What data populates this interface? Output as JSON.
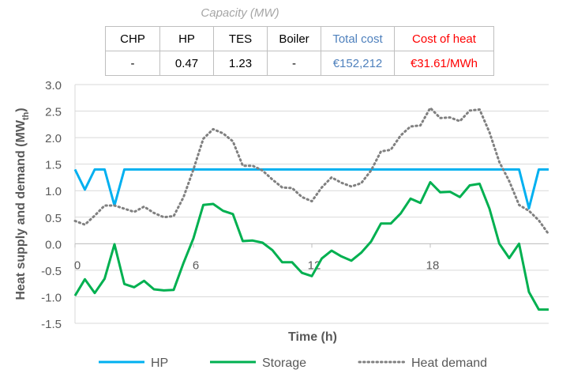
{
  "table": {
    "header": "Capacity (MW)",
    "columns": [
      "CHP",
      "HP",
      "TES",
      "Boiler",
      "Total cost",
      "Cost of heat"
    ],
    "values": [
      "-",
      "0.47",
      "1.23",
      "-",
      "€152,212",
      "€31.61/MWh"
    ],
    "colors": [
      "#000000",
      "#000000",
      "#000000",
      "#000000",
      "#4f81bd",
      "#ff0000"
    ]
  },
  "chart_data": {
    "type": "line",
    "xlabel": "Time (h)",
    "ylabel": "Heat supply and demand (MWth)",
    "xlim": [
      0,
      24
    ],
    "ylim": [
      -1.5,
      3.0
    ],
    "xticks": [
      0,
      6,
      12,
      18
    ],
    "yticks": [
      -1.5,
      -1.0,
      -0.5,
      0.0,
      0.5,
      1.0,
      1.5,
      2.0,
      2.5,
      3.0
    ],
    "grid": "horizontal",
    "legend": "bottom",
    "series": [
      {
        "name": "HP",
        "color": "#00b0f0",
        "dash": "solid",
        "x": [
          0,
          0.5,
          1,
          1.5,
          2,
          2.5,
          3,
          4,
          6,
          8,
          10,
          12,
          14,
          16,
          18,
          20,
          22,
          22.5,
          23,
          23.5,
          24
        ],
        "y": [
          1.4,
          1.02,
          1.4,
          1.4,
          0.72,
          1.4,
          1.4,
          1.4,
          1.4,
          1.4,
          1.4,
          1.4,
          1.4,
          1.4,
          1.4,
          1.4,
          1.4,
          1.4,
          0.67,
          1.4,
          1.4
        ]
      },
      {
        "name": "Storage",
        "color": "#00b050",
        "dash": "solid",
        "x": [
          0,
          0.5,
          1,
          1.5,
          2,
          2.5,
          3,
          3.5,
          4,
          4.5,
          5,
          5.5,
          6,
          6.5,
          7,
          7.5,
          8,
          8.5,
          9,
          9.5,
          10,
          10.5,
          11,
          11.5,
          12,
          12.5,
          13,
          13.5,
          14,
          14.5,
          15,
          15.5,
          16,
          16.5,
          17,
          17.5,
          18,
          18.5,
          19,
          19.5,
          20,
          20.5,
          21,
          21.5,
          22,
          22.5,
          23,
          23.5,
          24
        ],
        "y": [
          -0.98,
          -0.67,
          -0.93,
          -0.66,
          -0.01,
          -0.76,
          -0.82,
          -0.7,
          -0.86,
          -0.88,
          -0.87,
          -0.36,
          0.1,
          0.73,
          0.75,
          0.62,
          0.56,
          0.05,
          0.06,
          0.02,
          -0.12,
          -0.35,
          -0.35,
          -0.55,
          -0.61,
          -0.28,
          -0.13,
          -0.24,
          -0.32,
          -0.17,
          0.04,
          0.38,
          0.38,
          0.57,
          0.85,
          0.77,
          1.16,
          0.97,
          0.98,
          0.88,
          1.1,
          1.13,
          0.66,
          0.0,
          -0.27,
          0.0,
          -0.91,
          -1.24,
          -1.24
        ]
      },
      {
        "name": "Heat demand",
        "color": "#808080",
        "dash": "dotted",
        "x": [
          0,
          0.5,
          1,
          1.5,
          2,
          2.5,
          3,
          3.5,
          4,
          4.5,
          5,
          5.5,
          6,
          6.5,
          7,
          7.5,
          8,
          8.5,
          9,
          9.5,
          10,
          10.5,
          11,
          11.5,
          12,
          12.5,
          13,
          13.5,
          14,
          14.5,
          15,
          15.5,
          16,
          16.5,
          17,
          17.5,
          18,
          18.5,
          19,
          19.5,
          20,
          20.5,
          21,
          21.5,
          22,
          22.5,
          23,
          23.5,
          24
        ],
        "y": [
          0.43,
          0.36,
          0.53,
          0.72,
          0.72,
          0.66,
          0.6,
          0.7,
          0.58,
          0.5,
          0.52,
          0.88,
          1.4,
          1.98,
          2.16,
          2.08,
          1.93,
          1.47,
          1.47,
          1.38,
          1.21,
          1.06,
          1.05,
          0.88,
          0.8,
          1.06,
          1.25,
          1.15,
          1.08,
          1.14,
          1.38,
          1.74,
          1.77,
          2.04,
          2.21,
          2.23,
          2.56,
          2.37,
          2.38,
          2.31,
          2.51,
          2.53,
          2.1,
          1.54,
          1.18,
          0.73,
          0.62,
          0.44,
          0.18
        ]
      }
    ]
  }
}
